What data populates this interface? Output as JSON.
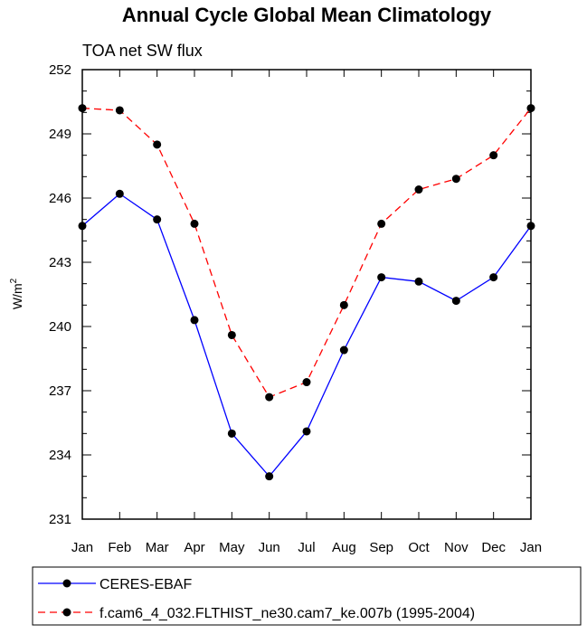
{
  "chart_data": {
    "type": "line",
    "title": "Annual Cycle Global Mean Climatology",
    "subtitle": "TOA net SW flux",
    "ylabel_base": "W/m",
    "ylabel_sup": "2",
    "categories": [
      "Jan",
      "Feb",
      "Mar",
      "Apr",
      "May",
      "Jun",
      "Jul",
      "Aug",
      "Sep",
      "Oct",
      "Nov",
      "Dec",
      "Jan"
    ],
    "ylim": [
      231,
      252
    ],
    "yticks": [
      231,
      234,
      237,
      240,
      243,
      246,
      249,
      252
    ],
    "series": [
      {
        "name": "CERES-EBAF",
        "color": "#0000ff",
        "dash": "solid",
        "values": [
          244.7,
          246.2,
          245.0,
          240.3,
          235.0,
          233.0,
          235.1,
          238.9,
          242.3,
          242.1,
          241.2,
          242.3,
          244.7
        ]
      },
      {
        "name": "f.cam6_4_032.FLTHIST_ne30.cam7_ke.007b (1995-2004)",
        "color": "#ff0000",
        "dash": "dashed",
        "values": [
          250.2,
          250.1,
          248.5,
          244.8,
          239.6,
          236.7,
          237.4,
          241.0,
          244.8,
          246.4,
          246.9,
          248.0,
          250.2
        ]
      }
    ],
    "legend_position": "bottom"
  }
}
